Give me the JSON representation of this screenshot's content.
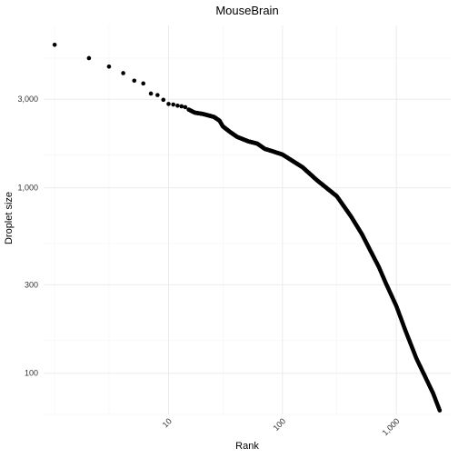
{
  "chart_data": {
    "type": "scatter",
    "title": "MouseBrain",
    "xlabel": "Rank",
    "ylabel": "Droplet size",
    "x_scale": "log10",
    "y_scale": "log10",
    "xlim": [
      0.8,
      3000
    ],
    "ylim": [
      60,
      7500
    ],
    "x_major_ticks": [
      10,
      100,
      1000
    ],
    "x_tick_labels": [
      "10",
      "100",
      "1,000"
    ],
    "x_minor_ticks": [
      1,
      3,
      30,
      300
    ],
    "y_major_ticks": [
      100,
      300,
      1000,
      3000
    ],
    "y_tick_labels": [
      "100",
      "300",
      "1,000",
      "3,000"
    ],
    "y_minor_ticks": [
      60,
      150,
      500,
      1500,
      5000
    ],
    "grid": true,
    "legend": "none",
    "point_color": "#000000",
    "anchors": {
      "x": [
        1,
        2,
        3,
        4,
        5,
        6,
        7,
        8,
        9,
        10,
        11,
        12,
        13,
        14,
        15,
        17,
        20,
        25,
        28,
        30,
        35,
        40,
        50,
        60,
        70,
        80,
        100,
        150,
        200,
        300,
        400,
        500,
        600,
        700,
        800,
        1000,
        1200,
        1500,
        1800,
        2100,
        2400
      ],
      "y": [
        5900,
        5000,
        4500,
        4150,
        3780,
        3650,
        3220,
        3160,
        2980,
        2830,
        2810,
        2770,
        2750,
        2720,
        2640,
        2540,
        2500,
        2410,
        2300,
        2140,
        1990,
        1880,
        1780,
        1730,
        1620,
        1580,
        1510,
        1290,
        1100,
        900,
        700,
        560,
        450,
        375,
        310,
        230,
        170,
        120,
        95,
        78,
        63
      ]
    }
  }
}
